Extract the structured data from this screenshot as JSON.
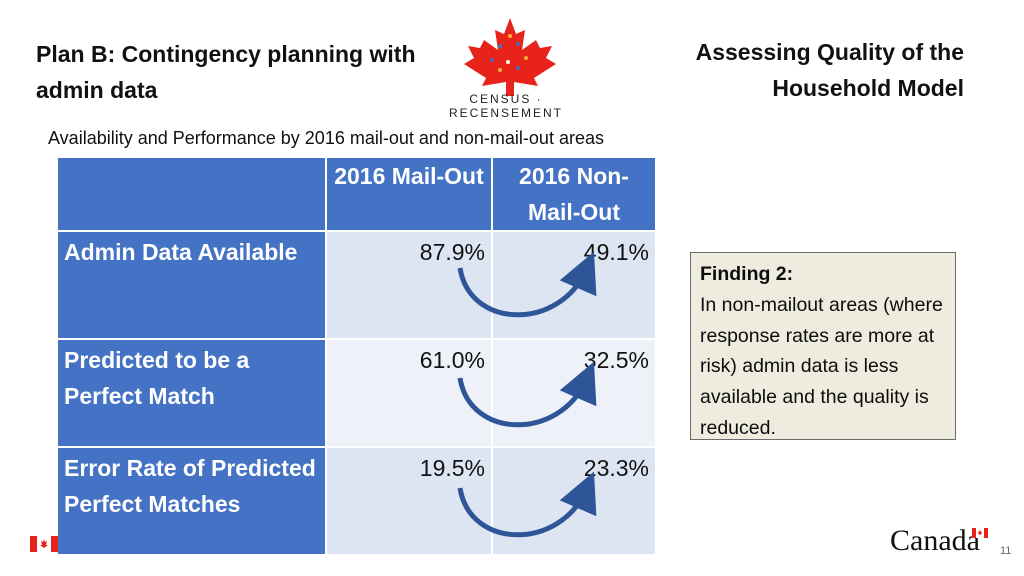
{
  "header": {
    "title_left": "Plan B: Contingency planning with admin data",
    "title_right": "Assessing Quality of the Household Model",
    "logo_text": "CENSUS · RECENSEMENT"
  },
  "subtitle": "Availability and Performance by 2016 mail-out and non-mail-out areas",
  "table": {
    "col1_header": "2016 Mail-Out",
    "col2_header": "2016 Non-Mail-Out",
    "rows": [
      {
        "label": "Admin Data Available",
        "mailout": "87.9%",
        "nonmailout": "49.1%"
      },
      {
        "label": "Predicted to be a Perfect Match",
        "mailout": "61.0%",
        "nonmailout": "32.5%"
      },
      {
        "label": "Error Rate of Predicted Perfect Matches",
        "mailout": "19.5%",
        "nonmailout": "23.3%"
      }
    ]
  },
  "finding": {
    "heading": "Finding 2:",
    "body": "In non-mailout areas (where response rates are more at risk) admin data is less available and the quality is reduced."
  },
  "footer": {
    "wordmark": "Canada",
    "page_number": "11"
  },
  "colors": {
    "table_blue": "#4472c4",
    "cell_light": "#dde5f2",
    "arrow_blue": "#2e5597",
    "flag_red": "#e8231b"
  }
}
